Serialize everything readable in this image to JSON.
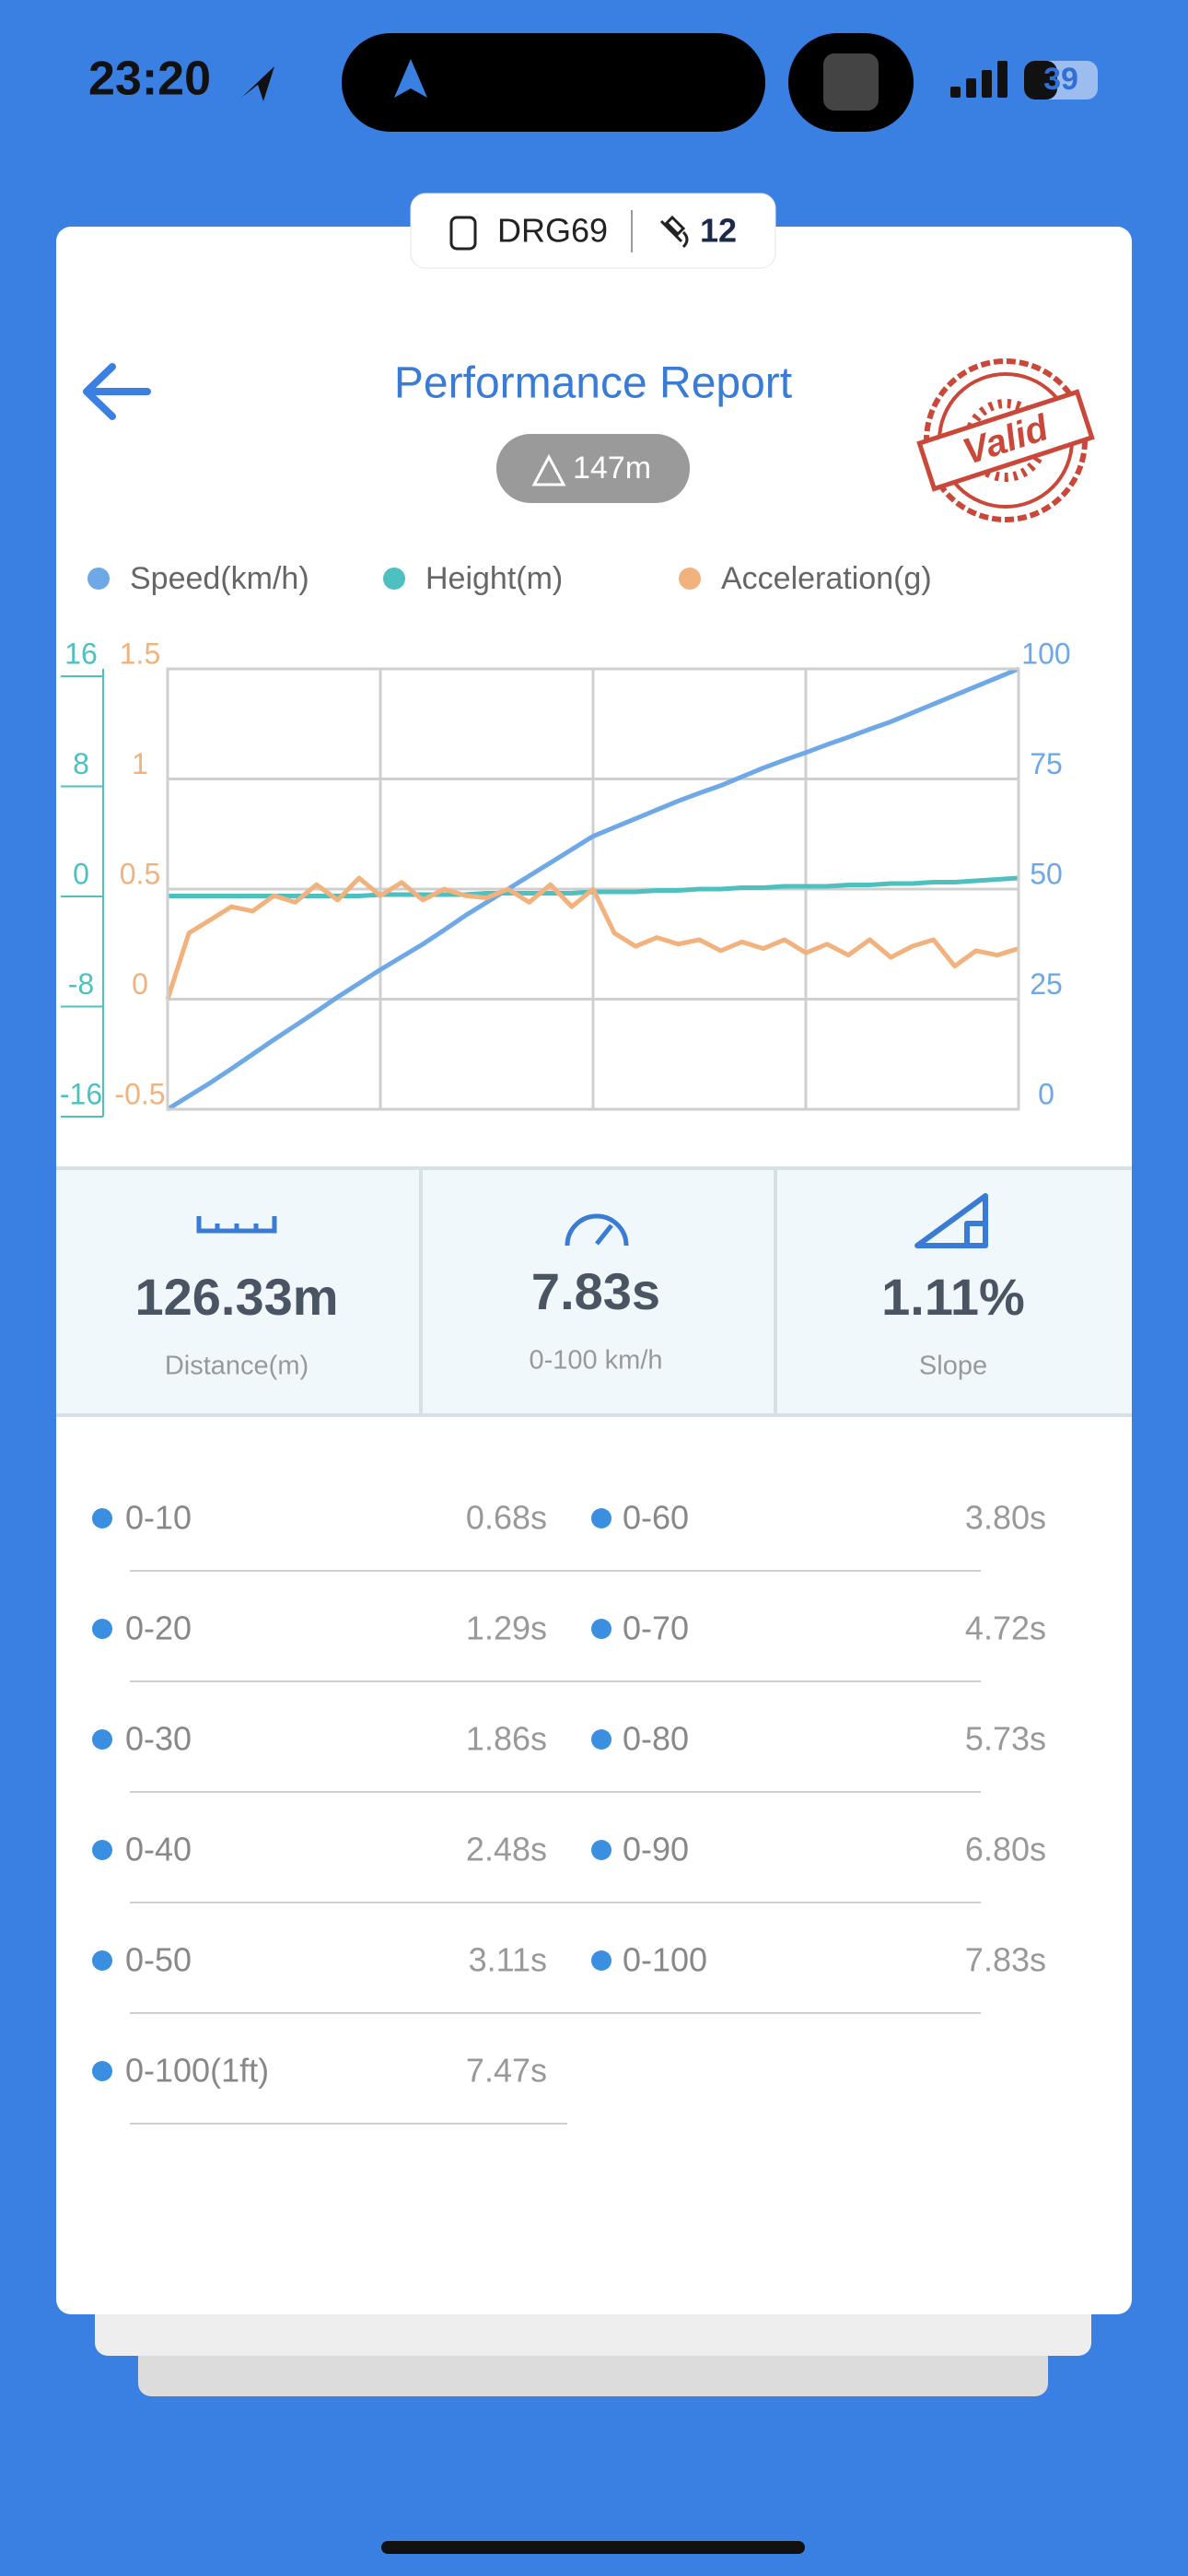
{
  "status_bar": {
    "time": "23:20",
    "battery": "39"
  },
  "device": {
    "name": "DRG69",
    "satellites": 12
  },
  "header": {
    "title": "Performance Report",
    "altitude": "147m",
    "stamp": "Valid"
  },
  "chart_data": {
    "type": "line",
    "x": [
      0,
      1,
      2,
      3,
      4,
      5,
      6,
      7,
      8,
      9,
      10,
      11,
      12,
      13,
      14,
      15,
      16,
      17,
      18,
      19,
      20,
      21,
      22,
      23,
      24,
      25,
      26,
      27,
      28,
      29,
      30,
      31,
      32,
      33,
      34,
      35,
      36,
      37,
      38,
      39,
      40
    ],
    "xlim": [
      0,
      40
    ],
    "xticks": [
      0,
      10,
      20,
      30,
      40
    ],
    "series": [
      {
        "name": "Speed(km/h)",
        "color": "#6ea8e6",
        "axis": "y2",
        "values": [
          0,
          3,
          6,
          9.2,
          12.5,
          15.8,
          19,
          22.2,
          25.5,
          28.6,
          31.7,
          34.6,
          37.5,
          40.7,
          44,
          47,
          50,
          53,
          56,
          59,
          62,
          64,
          66,
          68,
          70,
          71.8,
          73.5,
          75.5,
          77.5,
          79.3,
          81,
          82.8,
          84.5,
          86.3,
          88,
          90,
          92,
          94,
          96,
          98,
          100
        ]
      },
      {
        "name": "Height(m)",
        "color": "#4fc0c0",
        "axis": "y",
        "values": [
          -0.5,
          -0.5,
          -0.5,
          -0.5,
          -0.5,
          -0.5,
          -0.5,
          -0.5,
          -0.5,
          -0.5,
          -0.4,
          -0.4,
          -0.4,
          -0.4,
          -0.4,
          -0.3,
          -0.3,
          -0.3,
          -0.3,
          -0.3,
          -0.2,
          -0.2,
          -0.2,
          -0.1,
          -0.1,
          0,
          0,
          0.1,
          0.1,
          0.2,
          0.2,
          0.2,
          0.3,
          0.3,
          0.4,
          0.4,
          0.5,
          0.5,
          0.6,
          0.7,
          0.8
        ]
      },
      {
        "name": "Acceleration(g)",
        "color": "#f2b27e",
        "axis": "y3",
        "values": [
          0,
          0.3,
          0.36,
          0.42,
          0.4,
          0.47,
          0.44,
          0.52,
          0.45,
          0.55,
          0.47,
          0.53,
          0.45,
          0.5,
          0.47,
          0.46,
          0.5,
          0.44,
          0.52,
          0.42,
          0.5,
          0.3,
          0.24,
          0.28,
          0.25,
          0.27,
          0.22,
          0.26,
          0.23,
          0.27,
          0.21,
          0.25,
          0.2,
          0.27,
          0.19,
          0.24,
          0.27,
          0.15,
          0.22,
          0.2,
          0.23
        ]
      }
    ],
    "ylim": [
      -16,
      16
    ],
    "yticks": [
      -16,
      -8,
      0,
      8,
      16
    ],
    "y2lim": [
      0,
      100
    ],
    "y2ticks": [
      0,
      25,
      50,
      75,
      100
    ],
    "y3lim": [
      -0.5,
      1.5
    ],
    "y3ticks": [
      -0.5,
      0,
      0.5,
      1,
      1.5
    ],
    "grid": true
  },
  "stats": [
    {
      "value": "126.33m",
      "label": "Distance(m)"
    },
    {
      "value": "7.83s",
      "label": "0-100 km/h"
    },
    {
      "value": "1.11%",
      "label": "Slope"
    }
  ],
  "splits": [
    {
      "label": "0-10",
      "time": "0.68s"
    },
    {
      "label": "0-20",
      "time": "1.29s"
    },
    {
      "label": "0-30",
      "time": "1.86s"
    },
    {
      "label": "0-40",
      "time": "2.48s"
    },
    {
      "label": "0-50",
      "time": "3.11s"
    },
    {
      "label": "0-60",
      "time": "3.80s"
    },
    {
      "label": "0-70",
      "time": "4.72s"
    },
    {
      "label": "0-80",
      "time": "5.73s"
    },
    {
      "label": "0-90",
      "time": "6.80s"
    },
    {
      "label": "0-100",
      "time": "7.83s"
    },
    {
      "label": "0-100(1ft)",
      "time": "7.47s"
    }
  ]
}
